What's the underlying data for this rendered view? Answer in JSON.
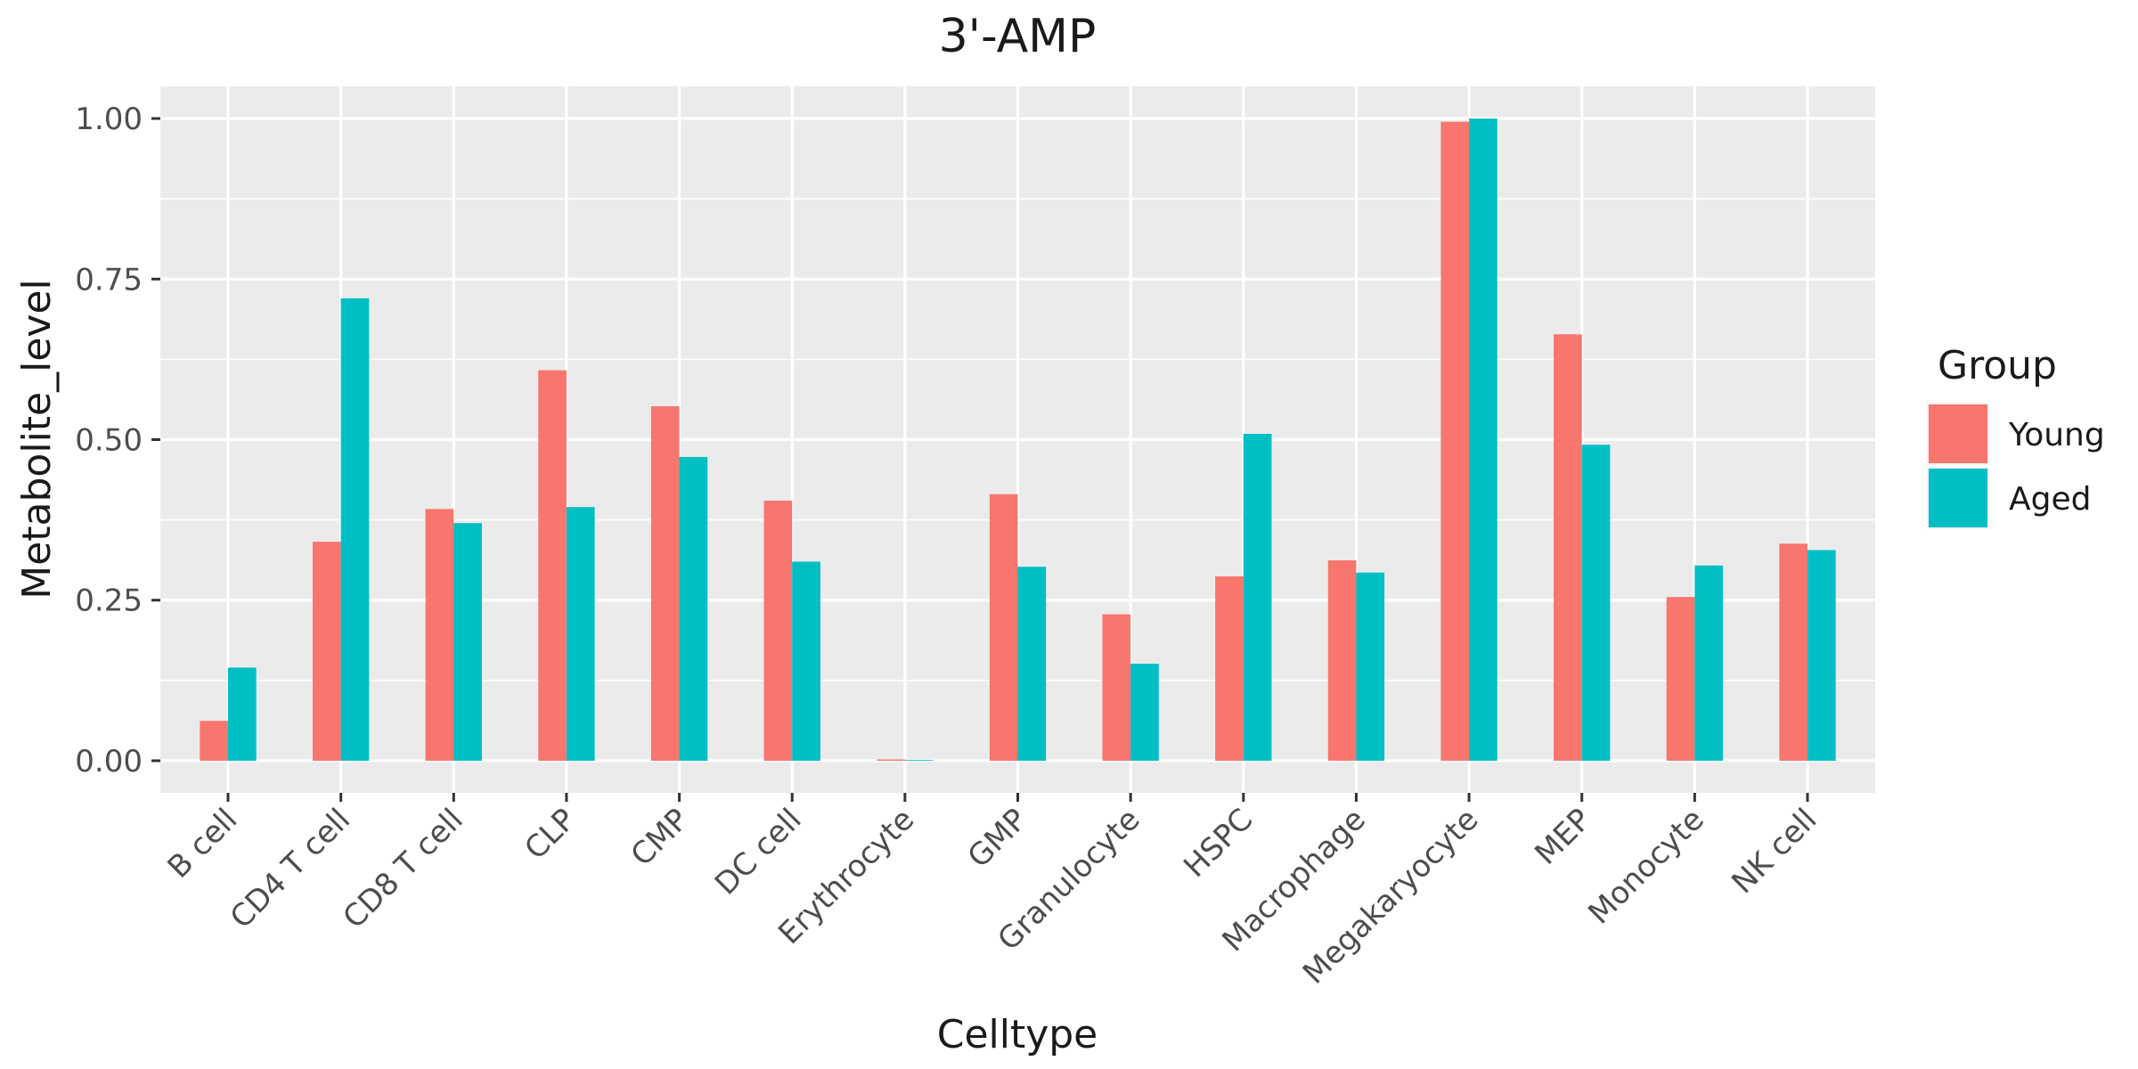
{
  "chart_data": {
    "type": "bar",
    "title": "3'-AMP",
    "xlabel": "Celltype",
    "ylabel": "Metabolite_level",
    "categories": [
      "B cell",
      "CD4 T cell",
      "CD8 T cell",
      "CLP",
      "CMP",
      "DC cell",
      "Erythrocyte",
      "GMP",
      "Granulocyte",
      "HSPC",
      "Macrophage",
      "Megakaryocyte",
      "MEP",
      "Monocyte",
      "NK cell"
    ],
    "series": [
      {
        "name": "Young",
        "color": "#F8766D",
        "values": [
          0.062,
          0.341,
          0.392,
          0.608,
          0.552,
          0.405,
          0.002,
          0.415,
          0.228,
          0.287,
          0.312,
          0.995,
          0.664,
          0.255,
          0.338
        ]
      },
      {
        "name": "Aged",
        "color": "#00BFC4",
        "values": [
          0.145,
          0.72,
          0.37,
          0.395,
          0.473,
          0.31,
          0.0,
          0.302,
          0.151,
          0.509,
          0.293,
          1.0,
          0.492,
          0.304,
          0.328
        ]
      }
    ],
    "ylim": [
      -0.05,
      1.05
    ],
    "yticks": [
      0.0,
      0.25,
      0.5,
      0.75,
      1.0
    ],
    "ytick_labels": [
      "0.00",
      "0.25",
      "0.50",
      "0.75",
      "1.00"
    ],
    "grid": true,
    "legend": {
      "title": "Group",
      "position": "right"
    },
    "panel_background": "#EBEBEB",
    "grid_color": "#FFFFFF"
  }
}
